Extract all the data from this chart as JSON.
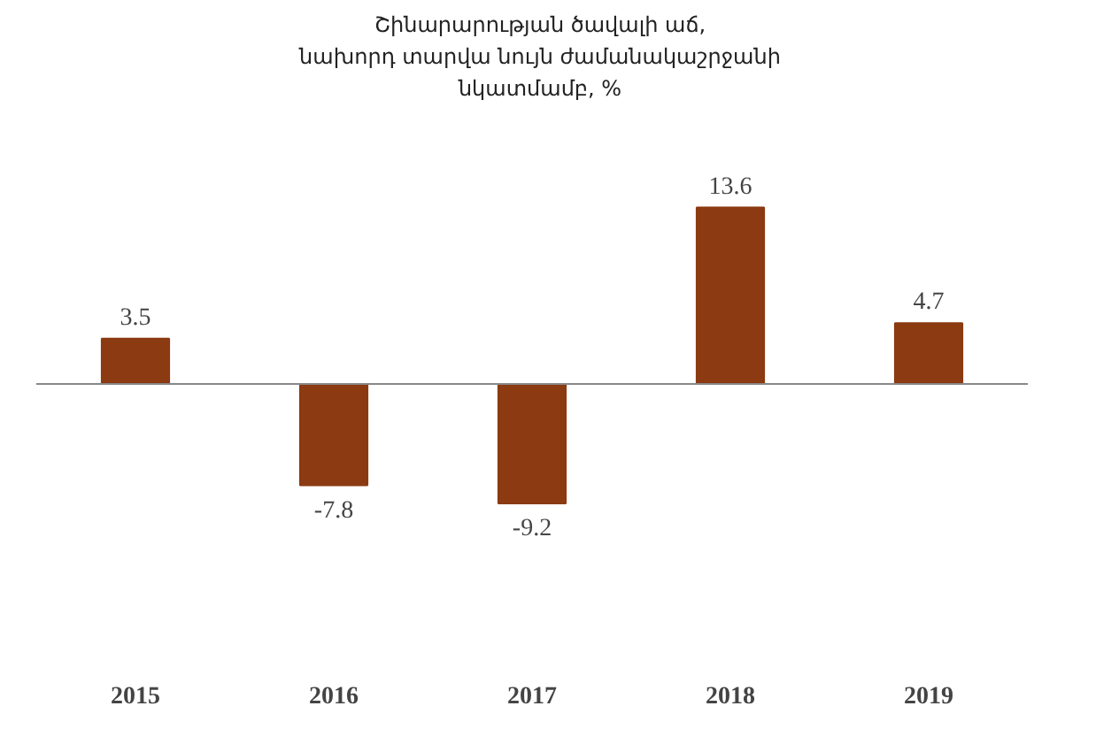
{
  "chart_data": {
    "type": "bar",
    "title": "Շինարարության ծավալի աճ,\nնախորդ տարվա նույն ժամանակաշրջանի\nնկատմամբ, %",
    "categories": [
      "2015",
      "2016",
      "2017",
      "2018",
      "2019"
    ],
    "values": [
      3.5,
      -7.8,
      -9.2,
      13.6,
      4.7
    ],
    "color": "#8b3a12",
    "data_labels": true
  }
}
